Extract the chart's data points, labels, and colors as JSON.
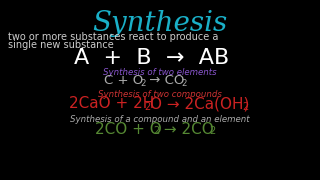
{
  "background_color": "#000000",
  "title": "Synthesis",
  "title_color": "#1ab0c8",
  "title_fontsize": 20,
  "subtitle_line1": "two or more substances react to produce a",
  "subtitle_line2": "single new substance",
  "subtitle_color": "#cccccc",
  "subtitle_fontsize": 7.0,
  "formula_AB_color": "#ffffff",
  "formula_AB_fontsize": 16,
  "label1": "Synthesis of two elements",
  "label1_color": "#8855cc",
  "label_fontsize": 6.2,
  "formula1_color": "#aaaaaa",
  "formula1_fontsize": 9.5,
  "label2": "Synthesis of two compounds",
  "label2_color": "#cc3333",
  "formula2_color": "#cc2222",
  "formula2_fontsize": 11,
  "label3": "Synthesis of a compound and an element",
  "label3_color": "#aaaaaa",
  "formula3_color": "#558833",
  "formula3_fontsize": 11
}
